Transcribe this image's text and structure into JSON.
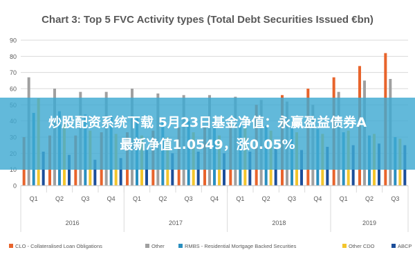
{
  "banner": {
    "line1": "炒股配资系统下载 5月23日基金净值：永赢盈益债券A",
    "line2": "最新净值1.0549，涨0.05%"
  },
  "chart_data": {
    "type": "bar",
    "title": "Chart 3: Top 5 FVC Activity types (Total Debt Securities Issued €bn)",
    "xlabel": "",
    "ylabel": "",
    "ylim": [
      0,
      90
    ],
    "yticks": [
      0,
      10,
      20,
      30,
      40,
      50,
      60,
      70,
      80,
      90
    ],
    "grid": true,
    "legend": "bottom",
    "categories": [
      "Q1",
      "Q2",
      "Q3",
      "Q4",
      "Q1",
      "Q2",
      "Q3",
      "Q4",
      "Q1",
      "Q2",
      "Q3",
      "Q4",
      "Q1",
      "Q2",
      "Q3"
    ],
    "groups": [
      {
        "label": "2016",
        "count": 4
      },
      {
        "label": "2017",
        "count": 4
      },
      {
        "label": "2018",
        "count": 4
      },
      {
        "label": "2019",
        "count": 3
      }
    ],
    "series": [
      {
        "name": "CLO - Collateralised Loan Obligations",
        "color": "#e8642c",
        "values": [
          30,
          31,
          31,
          33,
          33,
          34,
          36,
          37,
          40,
          50,
          56,
          60,
          67,
          74,
          82
        ]
      },
      {
        "name": "Other",
        "color": "#a0a0a0",
        "values": [
          67,
          60,
          58,
          58,
          60,
          57,
          56,
          56,
          55,
          53,
          52,
          50,
          58,
          65,
          66
        ]
      },
      {
        "name": "RMBS - Residential Mortgage Backed Securities",
        "color": "#2a8fbf",
        "values": [
          45,
          46,
          44,
          43,
          42,
          41,
          40,
          39,
          38,
          37,
          36,
          35,
          33,
          31,
          30
        ]
      },
      {
        "name": "Other CDO",
        "color": "#f3c52c",
        "values": [
          54,
          38,
          34,
          32,
          31,
          30,
          33,
          31,
          36,
          34,
          33,
          32,
          34,
          32,
          29
        ]
      },
      {
        "name": "ABCP",
        "color": "#1c4e9a",
        "values": [
          21,
          19,
          16,
          17,
          22,
          20,
          21,
          20,
          21,
          23,
          22,
          24,
          25,
          26,
          25
        ]
      }
    ]
  }
}
